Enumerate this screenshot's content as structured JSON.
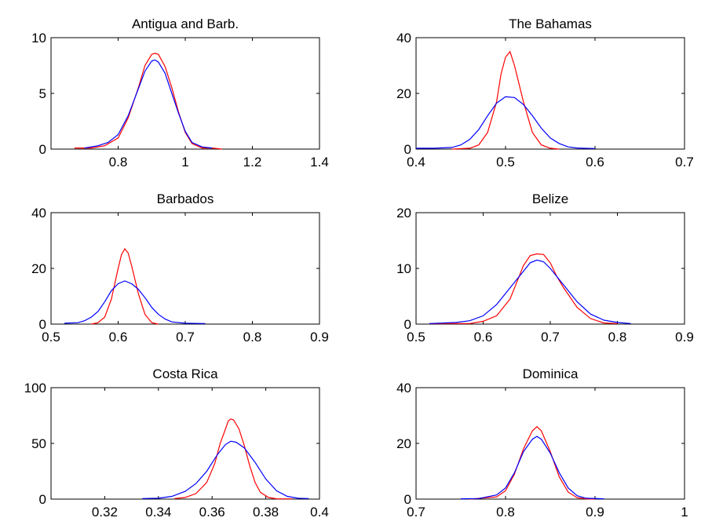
{
  "colors": {
    "red": "#ff0000",
    "blue": "#0000ff"
  },
  "chart_data": [
    {
      "type": "line",
      "title": "Antigua and Barb.",
      "xlim": [
        0.6,
        1.4
      ],
      "ylim": [
        0,
        10
      ],
      "xticks": [
        0.8,
        1,
        1.2,
        1.4
      ],
      "xtick_labels": [
        "0.8",
        "1",
        "1.2",
        "1.4"
      ],
      "yticks": [
        0,
        5,
        10
      ],
      "ytick_labels": [
        "0",
        "5",
        "10"
      ],
      "grid": false,
      "series": [
        {
          "color": "red",
          "x": [
            0.67,
            0.72,
            0.76,
            0.8,
            0.83,
            0.86,
            0.88,
            0.9,
            0.91,
            0.92,
            0.94,
            0.96,
            0.98,
            1.0,
            1.02,
            1.05,
            1.08,
            1.11
          ],
          "y": [
            0.1,
            0.1,
            0.3,
            1.0,
            2.8,
            5.5,
            7.5,
            8.5,
            8.6,
            8.5,
            7.4,
            5.5,
            3.3,
            1.5,
            0.5,
            0.1,
            0.1,
            0.0
          ]
        },
        {
          "color": "blue",
          "x": [
            0.7,
            0.74,
            0.77,
            0.8,
            0.83,
            0.86,
            0.88,
            0.9,
            0.91,
            0.92,
            0.94,
            0.96,
            0.98,
            1.0,
            1.02,
            1.05,
            1.08
          ],
          "y": [
            0.1,
            0.3,
            0.6,
            1.3,
            3.0,
            5.4,
            7.0,
            7.9,
            8.0,
            7.8,
            6.8,
            5.0,
            3.2,
            1.6,
            0.6,
            0.2,
            0.1
          ]
        }
      ]
    },
    {
      "type": "line",
      "title": "The Bahamas",
      "xlim": [
        0.4,
        0.7
      ],
      "ylim": [
        0,
        40
      ],
      "xticks": [
        0.4,
        0.5,
        0.6,
        0.7
      ],
      "xtick_labels": [
        "0.4",
        "0.5",
        "0.6",
        "0.7"
      ],
      "yticks": [
        0,
        20,
        40
      ],
      "ytick_labels": [
        "0",
        "20",
        "40"
      ],
      "grid": false,
      "series": [
        {
          "color": "red",
          "x": [
            0.44,
            0.46,
            0.47,
            0.48,
            0.49,
            0.495,
            0.5,
            0.505,
            0.51,
            0.52,
            0.53,
            0.54,
            0.55,
            0.56
          ],
          "y": [
            0.0,
            0.3,
            1.5,
            6.0,
            17.0,
            27.0,
            33.0,
            35.0,
            30.0,
            17.0,
            6.0,
            1.5,
            0.3,
            0.0
          ]
        },
        {
          "color": "blue",
          "x": [
            0.4,
            0.42,
            0.44,
            0.45,
            0.46,
            0.47,
            0.48,
            0.49,
            0.5,
            0.51,
            0.52,
            0.53,
            0.54,
            0.55,
            0.56,
            0.57,
            0.58,
            0.6
          ],
          "y": [
            0.3,
            0.3,
            0.6,
            1.5,
            3.5,
            7.0,
            12.0,
            16.5,
            18.8,
            18.5,
            16.0,
            12.0,
            7.5,
            4.0,
            2.0,
            0.8,
            0.4,
            0.2
          ]
        }
      ]
    },
    {
      "type": "line",
      "title": "Barbados",
      "xlim": [
        0.5,
        0.9
      ],
      "ylim": [
        0,
        40
      ],
      "xticks": [
        0.5,
        0.6,
        0.7,
        0.8,
        0.9
      ],
      "xtick_labels": [
        "0.5",
        "0.6",
        "0.7",
        "0.8",
        "0.9"
      ],
      "yticks": [
        0,
        20,
        40
      ],
      "ytick_labels": [
        "0",
        "20",
        "40"
      ],
      "grid": false,
      "series": [
        {
          "color": "red",
          "x": [
            0.56,
            0.57,
            0.58,
            0.59,
            0.6,
            0.605,
            0.61,
            0.615,
            0.62,
            0.63,
            0.64,
            0.65,
            0.66
          ],
          "y": [
            0.0,
            0.5,
            2.5,
            9.0,
            20.0,
            25.0,
            27.0,
            25.5,
            21.0,
            11.0,
            3.5,
            0.5,
            0.0
          ]
        },
        {
          "color": "blue",
          "x": [
            0.52,
            0.54,
            0.55,
            0.56,
            0.57,
            0.58,
            0.59,
            0.6,
            0.61,
            0.62,
            0.63,
            0.64,
            0.65,
            0.66,
            0.67,
            0.68,
            0.7,
            0.73
          ],
          "y": [
            0.3,
            0.5,
            1.2,
            2.5,
            4.5,
            8.0,
            12.0,
            14.5,
            15.5,
            14.5,
            12.5,
            9.5,
            6.0,
            3.5,
            1.8,
            0.8,
            0.3,
            0.2
          ]
        }
      ]
    },
    {
      "type": "line",
      "title": "Belize",
      "xlim": [
        0.5,
        0.9
      ],
      "ylim": [
        0,
        20
      ],
      "xticks": [
        0.5,
        0.6,
        0.7,
        0.8,
        0.9
      ],
      "xtick_labels": [
        "0.5",
        "0.6",
        "0.7",
        "0.8",
        "0.9"
      ],
      "yticks": [
        0,
        10,
        20
      ],
      "ytick_labels": [
        "0",
        "10",
        "20"
      ],
      "grid": false,
      "series": [
        {
          "color": "red",
          "x": [
            0.52,
            0.58,
            0.6,
            0.62,
            0.64,
            0.65,
            0.66,
            0.67,
            0.68,
            0.69,
            0.7,
            0.71,
            0.72,
            0.74,
            0.76,
            0.78,
            0.8
          ],
          "y": [
            0.1,
            0.1,
            0.5,
            1.5,
            4.5,
            7.5,
            10.5,
            12.3,
            12.6,
            12.5,
            11.0,
            8.5,
            6.5,
            3.0,
            1.0,
            0.2,
            0.1
          ]
        },
        {
          "color": "blue",
          "x": [
            0.52,
            0.56,
            0.58,
            0.6,
            0.62,
            0.64,
            0.66,
            0.67,
            0.68,
            0.69,
            0.7,
            0.72,
            0.74,
            0.76,
            0.78,
            0.8,
            0.82
          ],
          "y": [
            0.1,
            0.3,
            0.6,
            1.5,
            3.5,
            6.5,
            9.5,
            11.0,
            11.5,
            11.2,
            10.0,
            7.0,
            4.0,
            1.8,
            0.7,
            0.3,
            0.1
          ]
        }
      ]
    },
    {
      "type": "line",
      "title": "Costa Rica",
      "xlim": [
        0.3,
        0.4
      ],
      "ylim": [
        0,
        100
      ],
      "xticks": [
        0.32,
        0.34,
        0.36,
        0.38,
        0.4
      ],
      "xtick_labels": [
        "0.32",
        "0.34",
        "0.36",
        "0.38",
        "0.4"
      ],
      "yticks": [
        0,
        50,
        100
      ],
      "ytick_labels": [
        "0",
        "50",
        "100"
      ],
      "grid": false,
      "series": [
        {
          "color": "red",
          "x": [
            0.346,
            0.35,
            0.354,
            0.358,
            0.361,
            0.363,
            0.365,
            0.366,
            0.367,
            0.368,
            0.37,
            0.372,
            0.374,
            0.376,
            0.378,
            0.381,
            0.384,
            0.39
          ],
          "y": [
            0.5,
            1.5,
            5.0,
            15.0,
            32.0,
            50.0,
            63.0,
            70.0,
            72.0,
            71.0,
            63.0,
            48.0,
            30.0,
            15.0,
            6.0,
            1.5,
            0.3,
            0.2
          ]
        },
        {
          "color": "blue",
          "x": [
            0.334,
            0.34,
            0.345,
            0.35,
            0.354,
            0.358,
            0.362,
            0.365,
            0.367,
            0.369,
            0.372,
            0.376,
            0.38,
            0.384,
            0.388,
            0.392,
            0.396
          ],
          "y": [
            0.5,
            0.8,
            2.5,
            7.0,
            14.0,
            25.0,
            40.0,
            49.0,
            52.0,
            51.0,
            46.0,
            33.0,
            18.0,
            7.5,
            2.5,
            0.8,
            0.5
          ]
        }
      ]
    },
    {
      "type": "line",
      "title": "Dominica",
      "xlim": [
        0.7,
        1.0
      ],
      "ylim": [
        0,
        40
      ],
      "xticks": [
        0.7,
        0.8,
        0.9,
        1.0
      ],
      "xtick_labels": [
        "0.7",
        "0.8",
        "0.9",
        "1"
      ],
      "yticks": [
        0,
        20,
        40
      ],
      "ytick_labels": [
        "0",
        "20",
        "40"
      ],
      "grid": false,
      "series": [
        {
          "color": "red",
          "x": [
            0.76,
            0.79,
            0.8,
            0.81,
            0.82,
            0.83,
            0.835,
            0.84,
            0.85,
            0.86,
            0.87,
            0.88,
            0.89,
            0.9
          ],
          "y": [
            0.0,
            0.8,
            3.0,
            9.0,
            18.0,
            24.5,
            26.0,
            24.5,
            17.0,
            8.0,
            2.5,
            0.5,
            0.1,
            0.0
          ]
        },
        {
          "color": "blue",
          "x": [
            0.75,
            0.77,
            0.79,
            0.8,
            0.81,
            0.82,
            0.83,
            0.835,
            0.84,
            0.85,
            0.86,
            0.87,
            0.88,
            0.89,
            0.91
          ],
          "y": [
            0.1,
            0.2,
            1.5,
            4.0,
            9.5,
            17.0,
            21.5,
            22.5,
            21.5,
            16.5,
            9.5,
            4.0,
            1.2,
            0.3,
            0.1
          ]
        }
      ]
    }
  ]
}
